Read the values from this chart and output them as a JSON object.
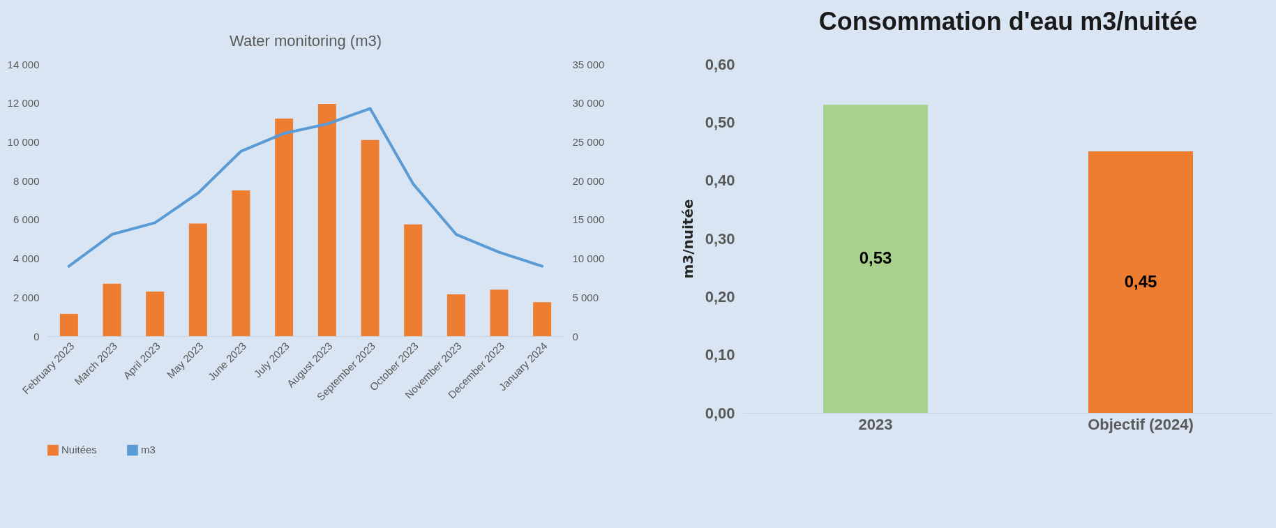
{
  "chart_data": [
    {
      "type": "bar",
      "title": "Water monitoring (m3)",
      "categories": [
        "February 2023",
        "March 2023",
        "April 2023",
        "May 2023",
        "June 2023",
        "July 2023",
        "August 2023",
        "September 2023",
        "October 2023",
        "November 2023",
        "December 2023",
        "January 2024"
      ],
      "series": [
        {
          "name": "Nuitées",
          "type": "bar",
          "color": "#ed7d31",
          "values": [
            1150,
            2700,
            2300,
            5800,
            7500,
            11200,
            11950,
            10100,
            5750,
            2150,
            2400,
            1750
          ]
        },
        {
          "name": "m3",
          "type": "line",
          "axis": "y2",
          "color": "#5b9bd5",
          "values": [
            9000,
            13100,
            14600,
            18400,
            23800,
            26100,
            27300,
            29300,
            19600,
            13100,
            10800,
            9000
          ]
        }
      ],
      "ylim": [
        0,
        14000
      ],
      "yticks": [
        0,
        {
          "value": 2000,
          "label": "2 000"
        },
        {
          "value": 4000,
          "label": "4 000"
        },
        {
          "value": 6000,
          "label": "6 000"
        },
        {
          "value": 8000,
          "label": "8 000"
        },
        {
          "value": 10000,
          "label": "10 000"
        },
        {
          "value": 12000,
          "label": "12 000"
        },
        {
          "value": 14000,
          "label": "14 000"
        }
      ],
      "y2lim": [
        0,
        35000
      ],
      "y2ticks": [
        0,
        {
          "value": 5000,
          "label": "5 000"
        },
        {
          "value": 10000,
          "label": "10 000"
        },
        {
          "value": 15000,
          "label": "15 000"
        },
        {
          "value": 20000,
          "label": "20 000"
        },
        {
          "value": 25000,
          "label": "25 000"
        },
        {
          "value": 30000,
          "label": "30 000"
        },
        {
          "value": 35000,
          "label": "35 000"
        }
      ],
      "grid": false,
      "legend": "bottom"
    },
    {
      "type": "bar",
      "title": "Consommation d'eau m3/nuitée",
      "ylabel": "m3/nuitée",
      "categories": [
        "2023",
        "Objectif (2024)"
      ],
      "values": [
        0.53,
        0.45
      ],
      "colors": [
        "#a9d18e",
        "#ed7d31"
      ],
      "value_labels": [
        "0,53",
        "0,45"
      ],
      "ylim": [
        0,
        0.6
      ],
      "yticks": [
        {
          "value": 0,
          "label": "0,00"
        },
        {
          "value": 0.1,
          "label": "0,10"
        },
        {
          "value": 0.2,
          "label": "0,20"
        },
        {
          "value": 0.3,
          "label": "0,30"
        },
        {
          "value": 0.4,
          "label": "0,40"
        },
        {
          "value": 0.5,
          "label": "0,50"
        },
        {
          "value": 0.6,
          "label": "0,60"
        }
      ],
      "grid": false
    }
  ]
}
